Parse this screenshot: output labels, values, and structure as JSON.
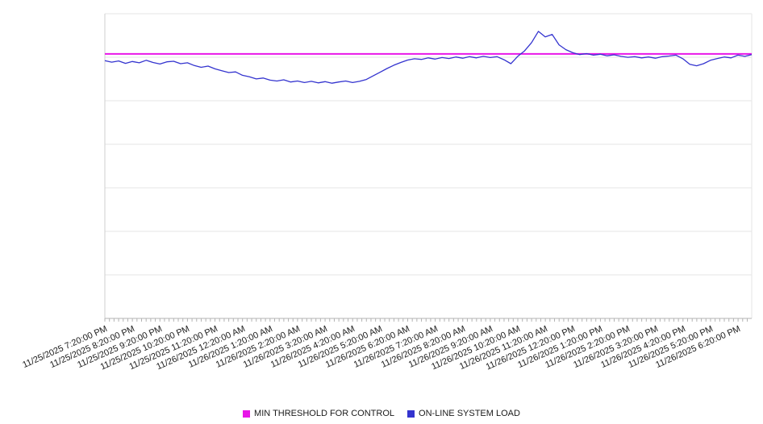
{
  "chart_data": {
    "type": "line",
    "title": "",
    "x_total_hours": 23.5,
    "x_label_interval_hours": 1,
    "minor_tick_interval_hours": 0.1667,
    "ylim": [
      0,
      100
    ],
    "grid": "horizontal",
    "legend_position": "bottom-center",
    "x_tick_labels": [
      "11/25/2025 7:20:00 PM",
      "11/25/2025 8:20:00 PM",
      "11/25/2025 9:20:00 PM",
      "11/25/2025 10:20:00 PM",
      "11/25/2025 11:20:00 PM",
      "11/26/2025 12:20:00 AM",
      "11/26/2025 1:20:00 AM",
      "11/26/2025 2:20:00 AM",
      "11/26/2025 3:20:00 AM",
      "11/26/2025 4:20:00 AM",
      "11/26/2025 5:20:00 AM",
      "11/26/2025 6:20:00 AM",
      "11/26/2025 7:20:00 AM",
      "11/26/2025 8:20:00 AM",
      "11/26/2025 9:20:00 AM",
      "11/26/2025 10:20:00 AM",
      "11/26/2025 11:20:00 AM",
      "11/26/2025 12:20:00 PM",
      "11/26/2025 1:20:00 PM",
      "11/26/2025 2:20:00 PM",
      "11/26/2025 3:20:00 PM",
      "11/26/2025 4:20:00 PM",
      "11/26/2025 5:20:00 PM",
      "11/26/2025 6:20:00 PM"
    ],
    "series": [
      {
        "name": "MIN THRESHOLD FOR CONTROL",
        "type": "threshold",
        "color": "#e816e8",
        "value": 86.8
      },
      {
        "name": "ON-LINE SYSTEM LOAD",
        "type": "line",
        "color": "#3434cf",
        "x_start_hour": 0,
        "x_step_hours": 0.25,
        "values": [
          84.6,
          84.1,
          84.5,
          83.7,
          84.3,
          83.9,
          84.7,
          84.0,
          83.5,
          84.2,
          84.4,
          83.6,
          83.9,
          83.0,
          82.4,
          82.8,
          81.9,
          81.3,
          80.7,
          80.9,
          79.8,
          79.3,
          78.6,
          78.9,
          78.2,
          77.9,
          78.3,
          77.6,
          77.9,
          77.4,
          77.8,
          77.3,
          77.7,
          77.2,
          77.6,
          77.9,
          77.4,
          77.8,
          78.4,
          79.6,
          80.8,
          82.0,
          83.1,
          84.0,
          84.8,
          85.2,
          85.0,
          85.5,
          85.1,
          85.6,
          85.3,
          85.8,
          85.4,
          85.9,
          85.5,
          86.0,
          85.6,
          85.9,
          84.9,
          83.6,
          86.0,
          87.8,
          90.5,
          94.2,
          92.4,
          93.2,
          89.8,
          88.2,
          87.2,
          86.6,
          86.9,
          86.4,
          86.7,
          86.2,
          86.5,
          86.0,
          85.7,
          85.9,
          85.5,
          85.8,
          85.4,
          85.9,
          86.1,
          86.4,
          85.2,
          83.4,
          82.9,
          83.6,
          84.7,
          85.3,
          85.8,
          85.5,
          86.4,
          86.0,
          86.6
        ]
      }
    ]
  }
}
